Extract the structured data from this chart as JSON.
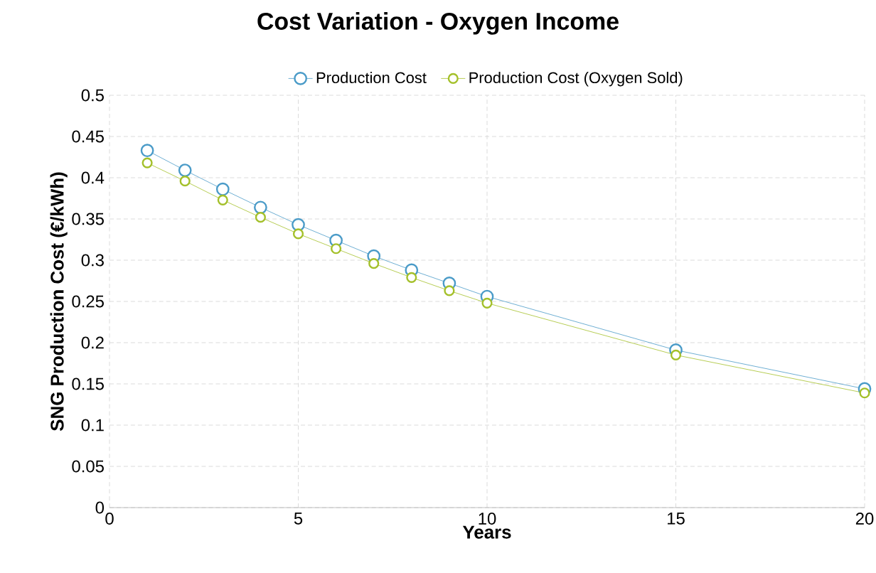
{
  "chart_data": {
    "type": "line",
    "title": "Cost Variation - Oxygen Income",
    "xlabel": "Years",
    "ylabel": "SNG Production Cost (€/kWh)",
    "x": [
      1,
      2,
      3,
      4,
      5,
      6,
      7,
      8,
      9,
      10,
      15,
      20
    ],
    "series": [
      {
        "name": "Production Cost",
        "color": "#4a9bc8",
        "values": [
          0.433,
          0.409,
          0.386,
          0.364,
          0.343,
          0.324,
          0.305,
          0.288,
          0.272,
          0.256,
          0.191,
          0.144
        ]
      },
      {
        "name": "Production Cost (Oxygen Sold)",
        "color": "#a4c02a",
        "values": [
          0.418,
          0.396,
          0.373,
          0.352,
          0.332,
          0.314,
          0.296,
          0.279,
          0.263,
          0.248,
          0.185,
          0.139
        ]
      }
    ],
    "xlim": [
      0,
      20
    ],
    "xticks": [
      0,
      5,
      10,
      15,
      20
    ],
    "ylim": [
      0,
      0.5
    ],
    "yticks": [
      0,
      0.05,
      0.1,
      0.15,
      0.2,
      0.25,
      0.3,
      0.35,
      0.4,
      0.45,
      0.5
    ],
    "grid": true,
    "legend": "top",
    "marker": "circle",
    "line_style": "solid"
  }
}
